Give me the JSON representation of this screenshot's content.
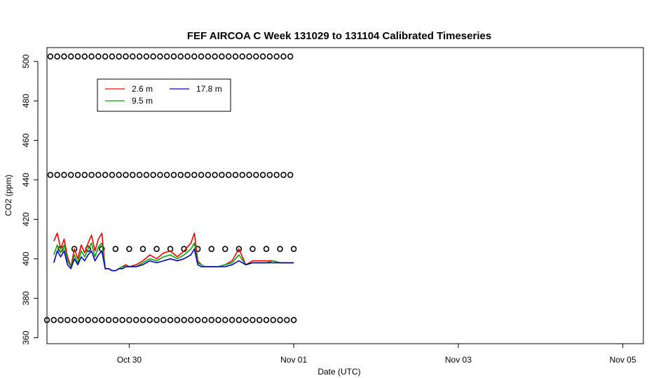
{
  "chart_data": {
    "type": "line",
    "title": "FEF AIRCOA C  Week 131029 to 131104  Calibrated Timeseries",
    "xlabel": "Date (UTC)",
    "ylabel": "CO2 (ppm)",
    "x_unit": "date (UTC)",
    "xlim": [
      "2013-10-29T00:00",
      "2013-11-05T06:00"
    ],
    "ylim": [
      357,
      507
    ],
    "x_ticks": [
      {
        "date": "2013-10-30T00:00",
        "label": "Oct 30"
      },
      {
        "date": "2013-11-01T00:00",
        "label": "Nov 01"
      },
      {
        "date": "2013-11-03T00:00",
        "label": "Nov 03"
      },
      {
        "date": "2013-11-05T00:00",
        "label": "Nov 05"
      }
    ],
    "y_ticks": [
      360,
      380,
      400,
      420,
      440,
      460,
      480,
      500
    ],
    "grid": false,
    "legend": {
      "position": "top-left",
      "entries": [
        {
          "label": "2.6 m",
          "color": "#ff0000"
        },
        {
          "label": "9.5 m",
          "color": "#00aa00"
        },
        {
          "label": "17.8 m",
          "color": "#0000cc"
        }
      ]
    },
    "series": [
      {
        "name": "2.6 m",
        "color": "#ff0000",
        "x": [
          "2013-10-29T02:00",
          "2013-10-29T03:00",
          "2013-10-29T04:00",
          "2013-10-29T05:00",
          "2013-10-29T06:00",
          "2013-10-29T07:00",
          "2013-10-29T08:00",
          "2013-10-29T09:00",
          "2013-10-29T10:00",
          "2013-10-29T11:00",
          "2013-10-29T12:00",
          "2013-10-29T13:00",
          "2013-10-29T14:00",
          "2013-10-29T15:00",
          "2013-10-29T16:00",
          "2013-10-29T17:00",
          "2013-10-29T18:00",
          "2013-10-29T19:00",
          "2013-10-29T20:00",
          "2013-10-29T21:00",
          "2013-10-29T22:00",
          "2013-10-29T23:00",
          "2013-10-30T00:00",
          "2013-10-30T02:00",
          "2013-10-30T04:00",
          "2013-10-30T06:00",
          "2013-10-30T08:00",
          "2013-10-30T10:00",
          "2013-10-30T12:00",
          "2013-10-30T14:00",
          "2013-10-30T16:00",
          "2013-10-30T18:00",
          "2013-10-30T19:00",
          "2013-10-30T20:00",
          "2013-10-30T21:00",
          "2013-10-30T22:00",
          "2013-10-31T00:00",
          "2013-10-31T02:00",
          "2013-10-31T04:00",
          "2013-10-31T06:00",
          "2013-10-31T08:00",
          "2013-10-31T10:00",
          "2013-10-31T12:00",
          "2013-10-31T14:00",
          "2013-10-31T16:00",
          "2013-10-31T18:00",
          "2013-10-31T20:00",
          "2013-10-31T22:00",
          "2013-11-01T00:00"
        ],
        "y": [
          409,
          413,
          405,
          410,
          401,
          396,
          405,
          400,
          407,
          403,
          408,
          412,
          404,
          410,
          413,
          395,
          395,
          394,
          394,
          395,
          396,
          397,
          396,
          397,
          399,
          402,
          400,
          403,
          404,
          401,
          404,
          408,
          413,
          399,
          397,
          396,
          396,
          396,
          397,
          399,
          405,
          397,
          399,
          399,
          399,
          399,
          398,
          398,
          398
        ]
      },
      {
        "name": "9.5 m",
        "color": "#00aa00",
        "x": [
          "2013-10-29T02:00",
          "2013-10-29T03:00",
          "2013-10-29T04:00",
          "2013-10-29T05:00",
          "2013-10-29T06:00",
          "2013-10-29T07:00",
          "2013-10-29T08:00",
          "2013-10-29T09:00",
          "2013-10-29T10:00",
          "2013-10-29T11:00",
          "2013-10-29T12:00",
          "2013-10-29T13:00",
          "2013-10-29T14:00",
          "2013-10-29T15:00",
          "2013-10-29T16:00",
          "2013-10-29T17:00",
          "2013-10-29T18:00",
          "2013-10-29T19:00",
          "2013-10-29T20:00",
          "2013-10-29T21:00",
          "2013-10-29T22:00",
          "2013-10-29T23:00",
          "2013-10-30T00:00",
          "2013-10-30T02:00",
          "2013-10-30T04:00",
          "2013-10-30T06:00",
          "2013-10-30T08:00",
          "2013-10-30T10:00",
          "2013-10-30T12:00",
          "2013-10-30T14:00",
          "2013-10-30T16:00",
          "2013-10-30T18:00",
          "2013-10-30T19:00",
          "2013-10-30T20:00",
          "2013-10-30T21:00",
          "2013-10-30T22:00",
          "2013-10-31T00:00",
          "2013-10-31T02:00",
          "2013-10-31T04:00",
          "2013-10-31T06:00",
          "2013-10-31T08:00",
          "2013-10-31T10:00",
          "2013-10-31T12:00",
          "2013-10-31T14:00",
          "2013-10-31T16:00",
          "2013-10-31T18:00",
          "2013-10-31T20:00",
          "2013-10-31T22:00",
          "2013-11-01T00:00"
        ],
        "y": [
          402,
          407,
          403,
          407,
          399,
          396,
          402,
          398,
          404,
          401,
          405,
          408,
          401,
          406,
          408,
          395,
          395,
          394,
          394,
          395,
          396,
          396,
          396,
          396,
          398,
          400,
          399,
          401,
          402,
          400,
          402,
          405,
          408,
          398,
          397,
          396,
          396,
          396,
          397,
          398,
          402,
          397,
          398,
          398,
          398,
          399,
          398,
          398,
          398
        ]
      },
      {
        "name": "17.8 m",
        "color": "#0000cc",
        "x": [
          "2013-10-29T02:00",
          "2013-10-29T03:00",
          "2013-10-29T04:00",
          "2013-10-29T05:00",
          "2013-10-29T06:00",
          "2013-10-29T07:00",
          "2013-10-29T08:00",
          "2013-10-29T09:00",
          "2013-10-29T10:00",
          "2013-10-29T11:00",
          "2013-10-29T12:00",
          "2013-10-29T13:00",
          "2013-10-29T14:00",
          "2013-10-29T15:00",
          "2013-10-29T16:00",
          "2013-10-29T17:00",
          "2013-10-29T18:00",
          "2013-10-29T19:00",
          "2013-10-29T20:00",
          "2013-10-29T21:00",
          "2013-10-29T22:00",
          "2013-10-29T23:00",
          "2013-10-30T00:00",
          "2013-10-30T02:00",
          "2013-10-30T04:00",
          "2013-10-30T06:00",
          "2013-10-30T08:00",
          "2013-10-30T10:00",
          "2013-10-30T12:00",
          "2013-10-30T14:00",
          "2013-10-30T16:00",
          "2013-10-30T18:00",
          "2013-10-30T19:00",
          "2013-10-30T20:00",
          "2013-10-30T21:00",
          "2013-10-30T22:00",
          "2013-10-31T00:00",
          "2013-10-31T02:00",
          "2013-10-31T04:00",
          "2013-10-31T06:00",
          "2013-10-31T08:00",
          "2013-10-31T10:00",
          "2013-10-31T12:00",
          "2013-10-31T14:00",
          "2013-10-31T16:00",
          "2013-10-31T18:00",
          "2013-10-31T20:00",
          "2013-10-31T22:00",
          "2013-11-01T00:00"
        ],
        "y": [
          398,
          404,
          401,
          404,
          397,
          395,
          400,
          397,
          401,
          399,
          402,
          404,
          399,
          402,
          404,
          395,
          395,
          394,
          394,
          395,
          395,
          396,
          396,
          396,
          397,
          399,
          398,
          399,
          400,
          399,
          400,
          402,
          405,
          397,
          396,
          396,
          396,
          396,
          396,
          397,
          399,
          397,
          398,
          398,
          398,
          398,
          398,
          398,
          398
        ]
      }
    ],
    "marker_series": {
      "marker": "open circle",
      "color": "#000000",
      "levels": [
        {
          "y": 502.5,
          "x_start": "2013-10-29T01:00",
          "x_end": "2013-11-01T00:00",
          "step_hours": 2
        },
        {
          "y": 442.5,
          "x_start": "2013-10-29T01:00",
          "x_end": "2013-11-01T00:00",
          "step_hours": 2
        },
        {
          "y": 405,
          "x_start": "2013-10-29T04:00",
          "x_end": "2013-11-01T00:00",
          "step_hours": 4
        },
        {
          "y": 369,
          "x_start": "2013-10-29T00:00",
          "x_end": "2013-11-01T00:00",
          "step_hours": 2
        }
      ]
    }
  }
}
